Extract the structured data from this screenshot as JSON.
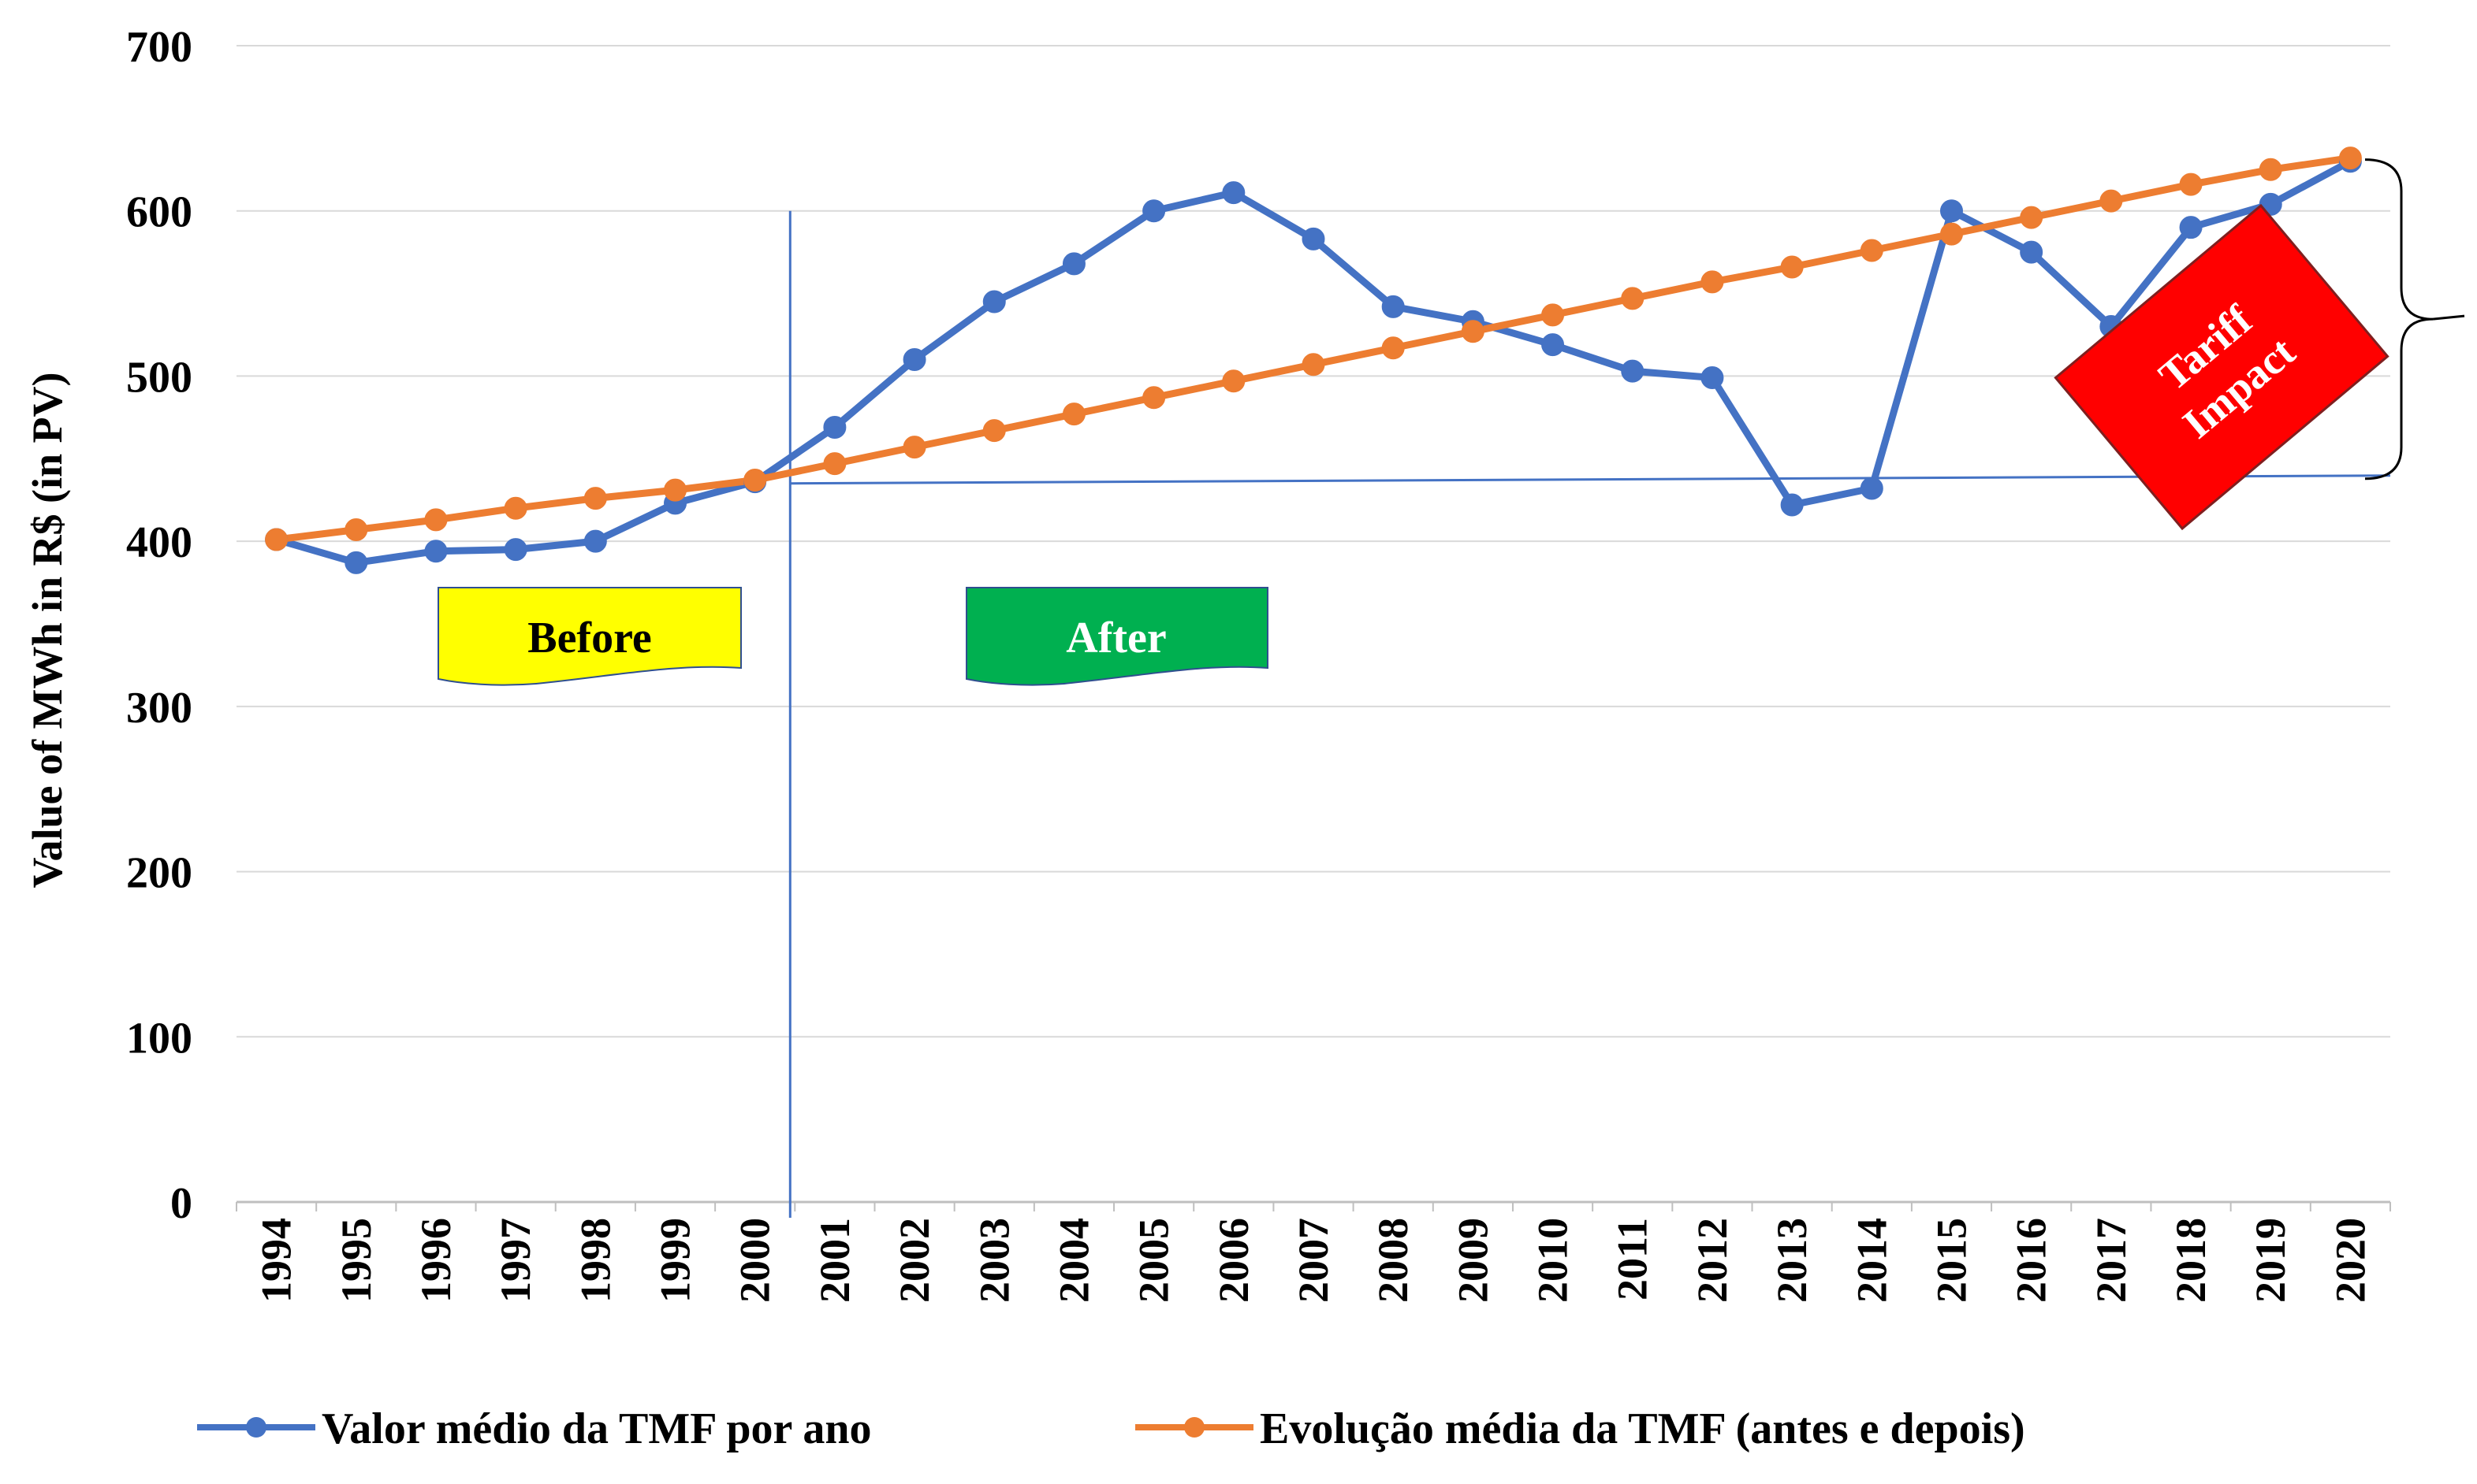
{
  "chart_data": {
    "type": "line",
    "ylabel": "Value of  MWh in R$ (in PV)",
    "xlabel": "",
    "title": "",
    "ylim": [
      0,
      700
    ],
    "yticks": [
      0,
      100,
      200,
      300,
      400,
      500,
      600,
      700
    ],
    "categories": [
      "1994",
      "1995",
      "1996",
      "1997",
      "1998",
      "1999",
      "2000",
      "2001",
      "2002",
      "2003",
      "2004",
      "2005",
      "2006",
      "2007",
      "2008",
      "2009",
      "2010",
      "2011",
      "2012",
      "2013",
      "2014",
      "2015",
      "2016",
      "2017",
      "2018",
      "2019",
      "2020"
    ],
    "series": [
      {
        "name": "Valor médio da TMF por ano",
        "color": "#4472C4",
        "values": [
          401,
          387,
          394,
          395,
          400,
          423,
          436,
          469,
          510,
          545,
          568,
          600,
          611,
          583,
          542,
          533,
          519,
          503,
          499,
          422,
          432,
          600,
          575,
          530,
          590,
          604,
          630
        ]
      },
      {
        "name": "Evolução média da TMF (antes e depois)",
        "color": "#ED7D31",
        "values": [
          401,
          407,
          413,
          420,
          426,
          431,
          437,
          447,
          457,
          467,
          477,
          487,
          497,
          507,
          517,
          527,
          537,
          547,
          557,
          566,
          576,
          586,
          596,
          606,
          616,
          625,
          632
        ]
      }
    ],
    "annotations": {
      "before_label": "Before",
      "after_label": "After",
      "tariff_impact_line1": "Tariff",
      "tariff_impact_line2": "Impact",
      "before_color": "#FFFF00",
      "after_color": "#00B050",
      "tariff_color": "#FF0000",
      "divider_year": "2001",
      "baseline_value": 435
    },
    "legend": "bottom"
  }
}
